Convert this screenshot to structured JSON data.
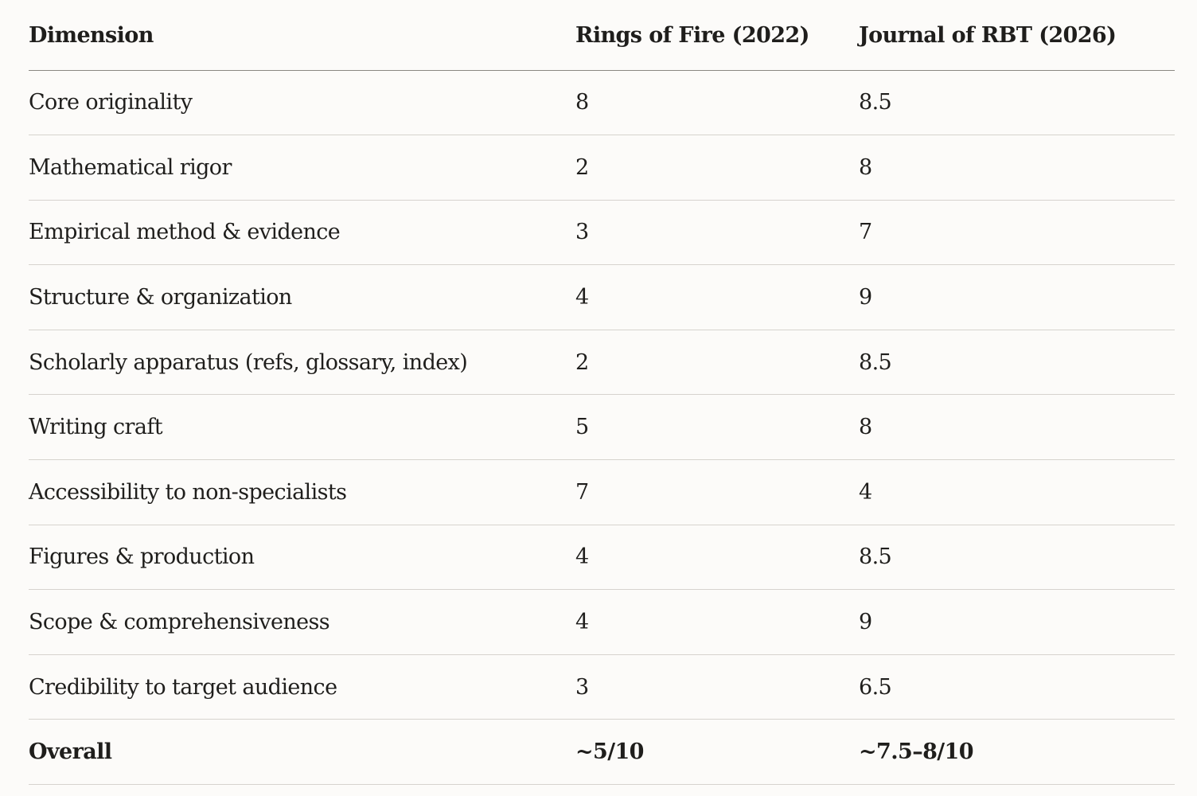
{
  "table": {
    "headers": [
      "Dimension",
      "Rings of Fire (2022)",
      "Journal of RBT (2026)"
    ],
    "rows": [
      [
        "Core originality",
        "8",
        "8.5"
      ],
      [
        "Mathematical rigor",
        "2",
        "8"
      ],
      [
        "Empirical method & evidence",
        "3",
        "7"
      ],
      [
        "Structure & organization",
        "4",
        "9"
      ],
      [
        "Scholarly apparatus (refs, glossary, index)",
        "2",
        "8.5"
      ],
      [
        "Writing craft",
        "5",
        "8"
      ],
      [
        "Accessibility to non-specialists",
        "7",
        "4"
      ],
      [
        "Figures & production",
        "4",
        "8.5"
      ],
      [
        "Scope & comprehensiveness",
        "4",
        "9"
      ],
      [
        "Credibility to target audience",
        "3",
        "6.5"
      ]
    ],
    "overall": [
      "Overall",
      "~5/10",
      "~7.5–8/10"
    ]
  }
}
